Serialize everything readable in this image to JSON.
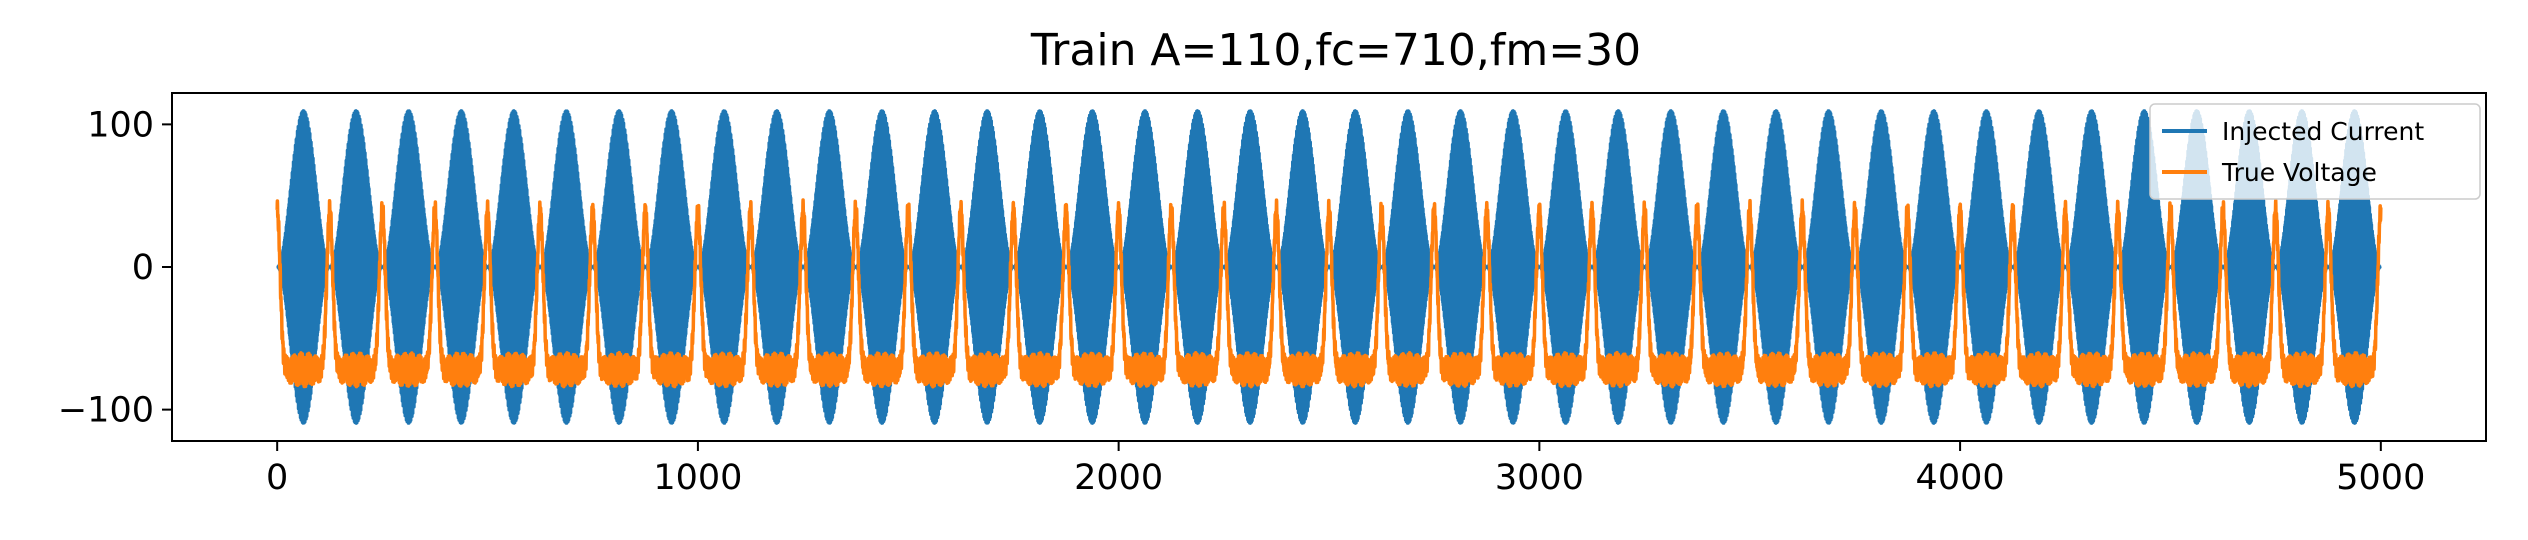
{
  "chart_data": {
    "type": "line",
    "title": "Train A=110,fc=710,fm=30",
    "xlabel": "",
    "ylabel": "",
    "xlim": [
      -250,
      5250
    ],
    "ylim": [
      -122,
      122
    ],
    "xticks": [
      0,
      1000,
      2000,
      3000,
      4000,
      5000
    ],
    "xtick_labels": [
      "0",
      "1000",
      "2000",
      "3000",
      "4000",
      "5000"
    ],
    "yticks": [
      -100,
      0,
      100
    ],
    "ytick_labels": [
      "−100",
      "0",
      "100"
    ],
    "grid": false,
    "legend_position": "upper right",
    "series": [
      {
        "name": "Injected Current",
        "color": "#1f77b4",
        "description": "Amplitude-modulated sinusoid, amplitude 110, 0 to 5000, about 40 envelope cycles, fills between -110 and 110",
        "amplitude": 110,
        "x_range": [
          0,
          5000
        ],
        "envelope_cycles": 40
      },
      {
        "name": "True Voltage",
        "color": "#ff7f0e",
        "description": "Membrane voltage: baseline near -72 with ripple, periodic spikes to about 40",
        "baseline": -72,
        "peak": 40,
        "x_range": [
          0,
          5000
        ],
        "spike_count": 40
      }
    ]
  }
}
